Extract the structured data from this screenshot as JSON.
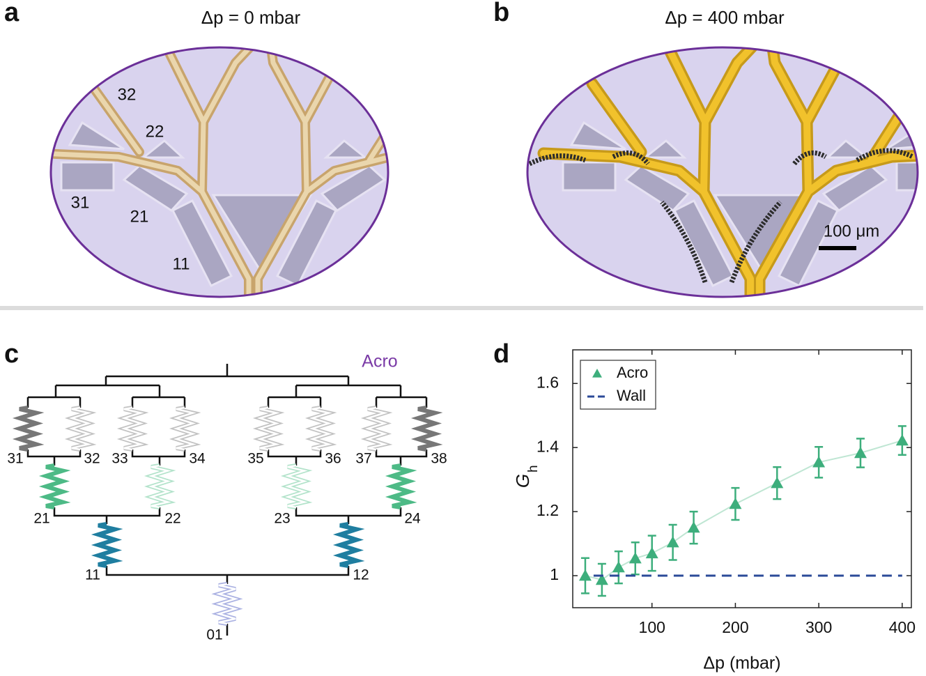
{
  "panel_a": {
    "letter": "a",
    "title": "Δp = 0 mbar",
    "labels": [
      "32",
      "22",
      "31",
      "21",
      "11"
    ]
  },
  "panel_b": {
    "letter": "b",
    "title": "Δp = 400 mbar",
    "scale_bar": "100 μm"
  },
  "panel_c": {
    "letter": "c",
    "label": "Acro",
    "nodes": [
      "31",
      "32",
      "33",
      "34",
      "35",
      "36",
      "37",
      "38",
      "21",
      "22",
      "23",
      "24",
      "11",
      "12",
      "01"
    ]
  },
  "panel_d": {
    "letter": "d"
  },
  "chart_data": {
    "type": "scatter",
    "x_label": "Δp (mbar)",
    "y_label": "G",
    "y_label_sub": "h",
    "xlim": [
      5,
      411
    ],
    "xticks": [
      100,
      200,
      300,
      400
    ],
    "ylim": [
      0.9,
      1.705
    ],
    "yticks": [
      1,
      1.2,
      1.4,
      1.6
    ],
    "legend": "upper left",
    "series": [
      {
        "name": "Acro",
        "color": "#3dae7c",
        "marker": "triangle",
        "x": [
          20,
          40,
          60,
          80,
          100,
          125,
          150,
          200,
          250,
          300,
          350,
          400
        ],
        "values": [
          1.0,
          0.987,
          1.026,
          1.054,
          1.07,
          1.104,
          1.15,
          1.224,
          1.289,
          1.354,
          1.383,
          1.422
        ],
        "errors": [
          0.055,
          0.05,
          0.05,
          0.05,
          0.055,
          0.055,
          0.05,
          0.05,
          0.05,
          0.048,
          0.045,
          0.045
        ]
      },
      {
        "name": "Wall",
        "color": "#2b4a98",
        "marker": "dashed-line",
        "x": [
          30,
          400
        ],
        "values": [
          1,
          1
        ]
      }
    ]
  }
}
